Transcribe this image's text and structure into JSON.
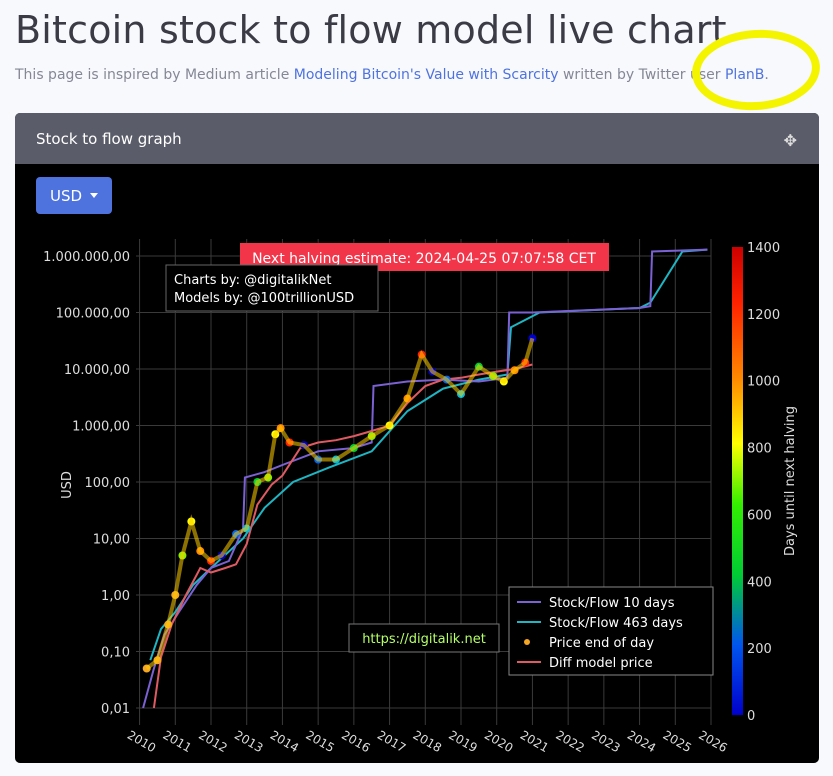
{
  "page": {
    "title": "Bitcoin stock to flow model live chart",
    "subtitle_prefix": "This page is inspired by Medium article ",
    "article_link": "Modeling Bitcoin's Value with Scarcity",
    "subtitle_middle": " written by Twitter user ",
    "author_link": "PlanB",
    "subtitle_suffix": "."
  },
  "card": {
    "header": "Stock to flow graph",
    "currency_button": "USD",
    "icon": "move-icon"
  },
  "chart_data": {
    "type": "scatter",
    "yscale": "log",
    "ylabel": "USD",
    "y_ticks": [
      "1.000.000,00",
      "100.000,00",
      "10.000,00",
      "1.000,00",
      "100,00",
      "10,00",
      "1,00",
      "0,10",
      "0,01"
    ],
    "x_ticks": [
      "2010",
      "2011",
      "2012",
      "2013",
      "2014",
      "2015",
      "2016",
      "2017",
      "2018",
      "2019",
      "2020",
      "2021",
      "2022",
      "2023",
      "2024",
      "2025",
      "2026"
    ],
    "xlim": [
      2009.9,
      2026.0
    ],
    "ylim": [
      0.005,
      2000000
    ],
    "halving_banner": "Next halving estimate: 2024-04-25 07:07:58 CET",
    "credits": [
      "Charts by: @digitalikNet",
      "Models by: @100trillionUSD"
    ],
    "watermark": "https://digitalik.net",
    "colorbar": {
      "title": "Days until next halving",
      "ticks": [
        "1400",
        "1200",
        "1000",
        "800",
        "600",
        "400",
        "200",
        "0"
      ],
      "range": [
        0,
        1400
      ]
    },
    "legend": {
      "position": "bottom-right",
      "entries": [
        {
          "name": "Stock/Flow 10 days",
          "color": "#7b61d3",
          "marker": "line"
        },
        {
          "name": "Stock/Flow 463 days",
          "color": "#1fb5c2",
          "marker": "line"
        },
        {
          "name": "Price end of day",
          "color": "#f5a623",
          "marker": "dot"
        },
        {
          "name": "Diff model price",
          "color": "#e05a62",
          "marker": "line"
        }
      ]
    },
    "series": [
      {
        "name": "Stock/Flow 463 days",
        "color": "#1fb5c2",
        "points": [
          [
            2010.3,
            0.07
          ],
          [
            2010.6,
            0.25
          ],
          [
            2011.0,
            0.5
          ],
          [
            2011.5,
            1.5
          ],
          [
            2012.0,
            3
          ],
          [
            2012.9,
            10
          ],
          [
            2013.5,
            35
          ],
          [
            2014.3,
            100
          ],
          [
            2015.3,
            180
          ],
          [
            2016.5,
            350
          ],
          [
            2017.5,
            1800
          ],
          [
            2018.5,
            4500
          ],
          [
            2019.5,
            6500
          ],
          [
            2020.3,
            8000
          ],
          [
            2020.4,
            55000
          ],
          [
            2021.2,
            100000
          ],
          [
            2024.0,
            120000
          ],
          [
            2024.3,
            150000
          ],
          [
            2025.2,
            1200000
          ],
          [
            2025.9,
            1300000
          ]
        ]
      },
      {
        "name": "Stock/Flow 10 days",
        "color": "#7b61d3",
        "points": [
          [
            2010.1,
            0.01
          ],
          [
            2010.4,
            0.05
          ],
          [
            2010.7,
            0.2
          ],
          [
            2011.1,
            0.5
          ],
          [
            2011.6,
            1.5
          ],
          [
            2012.0,
            3
          ],
          [
            2012.5,
            4
          ],
          [
            2012.9,
            15
          ],
          [
            2012.95,
            120
          ],
          [
            2013.5,
            150
          ],
          [
            2014.0,
            200
          ],
          [
            2015.0,
            350
          ],
          [
            2016.0,
            400
          ],
          [
            2016.5,
            500
          ],
          [
            2016.55,
            5000
          ],
          [
            2017.5,
            6000
          ],
          [
            2018.5,
            6500
          ],
          [
            2019.5,
            6000
          ],
          [
            2020.3,
            7000
          ],
          [
            2020.35,
            100000
          ],
          [
            2020.6,
            100000
          ],
          [
            2021.0,
            100000
          ],
          [
            2024.0,
            120000
          ],
          [
            2024.3,
            130000
          ],
          [
            2024.35,
            1200000
          ],
          [
            2025.9,
            1300000
          ]
        ]
      },
      {
        "name": "Diff model price",
        "color": "#e05a62",
        "points": [
          [
            2010.4,
            0.01
          ],
          [
            2010.6,
            0.08
          ],
          [
            2010.9,
            0.3
          ],
          [
            2011.3,
            1
          ],
          [
            2011.7,
            3
          ],
          [
            2012.0,
            2.5
          ],
          [
            2012.4,
            3
          ],
          [
            2012.7,
            3.5
          ],
          [
            2013.0,
            8
          ],
          [
            2013.3,
            40
          ],
          [
            2013.7,
            90
          ],
          [
            2014.0,
            130
          ],
          [
            2014.5,
            400
          ],
          [
            2015.0,
            500
          ],
          [
            2015.5,
            550
          ],
          [
            2016.0,
            650
          ],
          [
            2016.5,
            800
          ],
          [
            2017.0,
            1000
          ],
          [
            2017.5,
            2500
          ],
          [
            2018.0,
            5000
          ],
          [
            2018.5,
            6500
          ],
          [
            2019.0,
            7000
          ],
          [
            2019.5,
            8000
          ],
          [
            2020.0,
            9000
          ],
          [
            2020.5,
            10000
          ],
          [
            2021.0,
            12000
          ]
        ]
      },
      {
        "name": "Price end of day",
        "color": "#f5a623",
        "points": [
          [
            2010.2,
            0.05
          ],
          [
            2010.5,
            0.07
          ],
          [
            2010.8,
            0.3
          ],
          [
            2011.0,
            1
          ],
          [
            2011.2,
            5
          ],
          [
            2011.45,
            20
          ],
          [
            2011.7,
            6
          ],
          [
            2012.0,
            4
          ],
          [
            2012.3,
            5
          ],
          [
            2012.7,
            12
          ],
          [
            2013.0,
            15
          ],
          [
            2013.3,
            100
          ],
          [
            2013.6,
            120
          ],
          [
            2013.8,
            700
          ],
          [
            2013.95,
            900
          ],
          [
            2014.2,
            500
          ],
          [
            2014.6,
            450
          ],
          [
            2015.0,
            250
          ],
          [
            2015.5,
            250
          ],
          [
            2016.0,
            400
          ],
          [
            2016.5,
            650
          ],
          [
            2017.0,
            1000
          ],
          [
            2017.5,
            3000
          ],
          [
            2017.9,
            18000
          ],
          [
            2018.2,
            9000
          ],
          [
            2018.6,
            6500
          ],
          [
            2019.0,
            3600
          ],
          [
            2019.5,
            11000
          ],
          [
            2019.9,
            7500
          ],
          [
            2020.2,
            6000
          ],
          [
            2020.5,
            9500
          ],
          [
            2020.8,
            13000
          ],
          [
            2021.0,
            35000
          ]
        ]
      }
    ]
  }
}
